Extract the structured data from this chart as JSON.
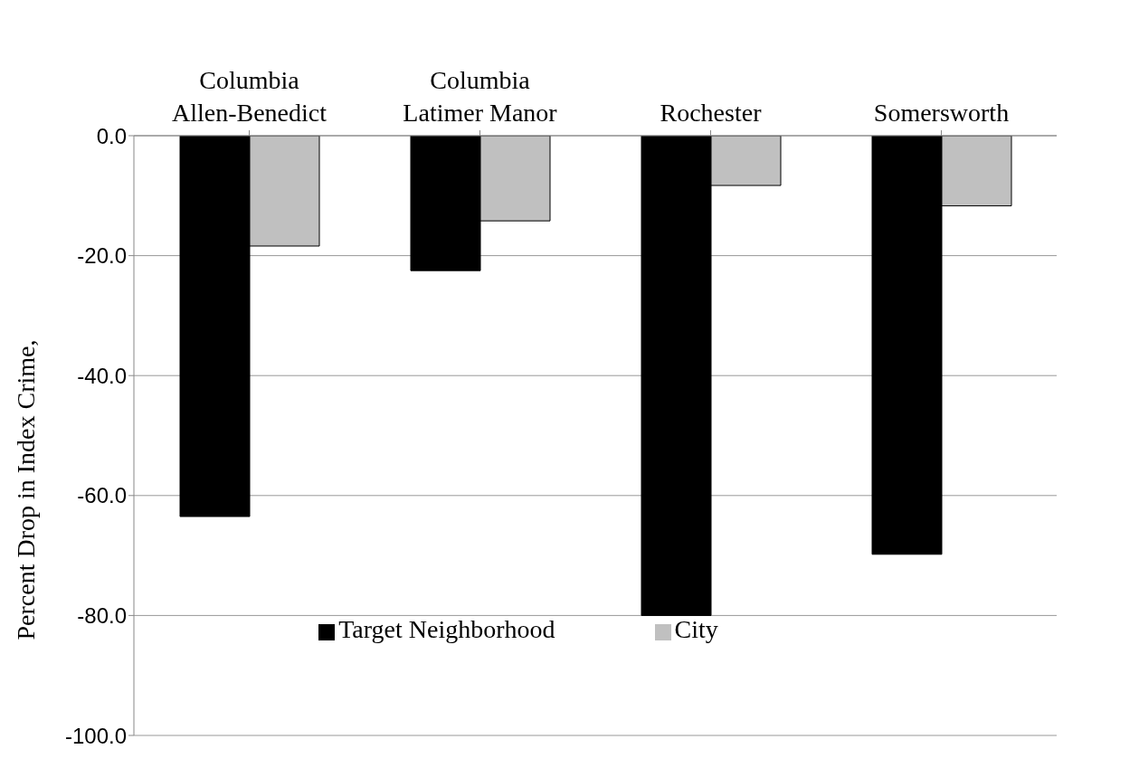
{
  "chart_data": {
    "type": "bar",
    "categories": [
      "Columbia\nAllen-Benedict",
      "Columbia\nLatimer Manor",
      "Rochester",
      "Somersworth"
    ],
    "ylabel": "Percent Drop in Index Crime,",
    "series": [
      {
        "name": "Target Neighborhood",
        "color": "#000000",
        "values": [
          -63.5,
          -22.5,
          -80.0,
          -69.8
        ]
      },
      {
        "name": "City",
        "color": "#c0c0c0",
        "values": [
          -18.4,
          -14.2,
          -8.3,
          -11.7
        ]
      }
    ],
    "ylim": [
      -100,
      0
    ],
    "yticks": [
      {
        "value": -100,
        "label": "-100.0"
      },
      {
        "value": -80,
        "label": "-80.0"
      },
      {
        "value": -60,
        "label": "-60.0"
      },
      {
        "value": -40,
        "label": "-40.0"
      },
      {
        "value": -20,
        "label": "-20.0"
      },
      {
        "value": 0,
        "label": "0.0"
      }
    ],
    "grid": "y",
    "legend": "bottom"
  }
}
